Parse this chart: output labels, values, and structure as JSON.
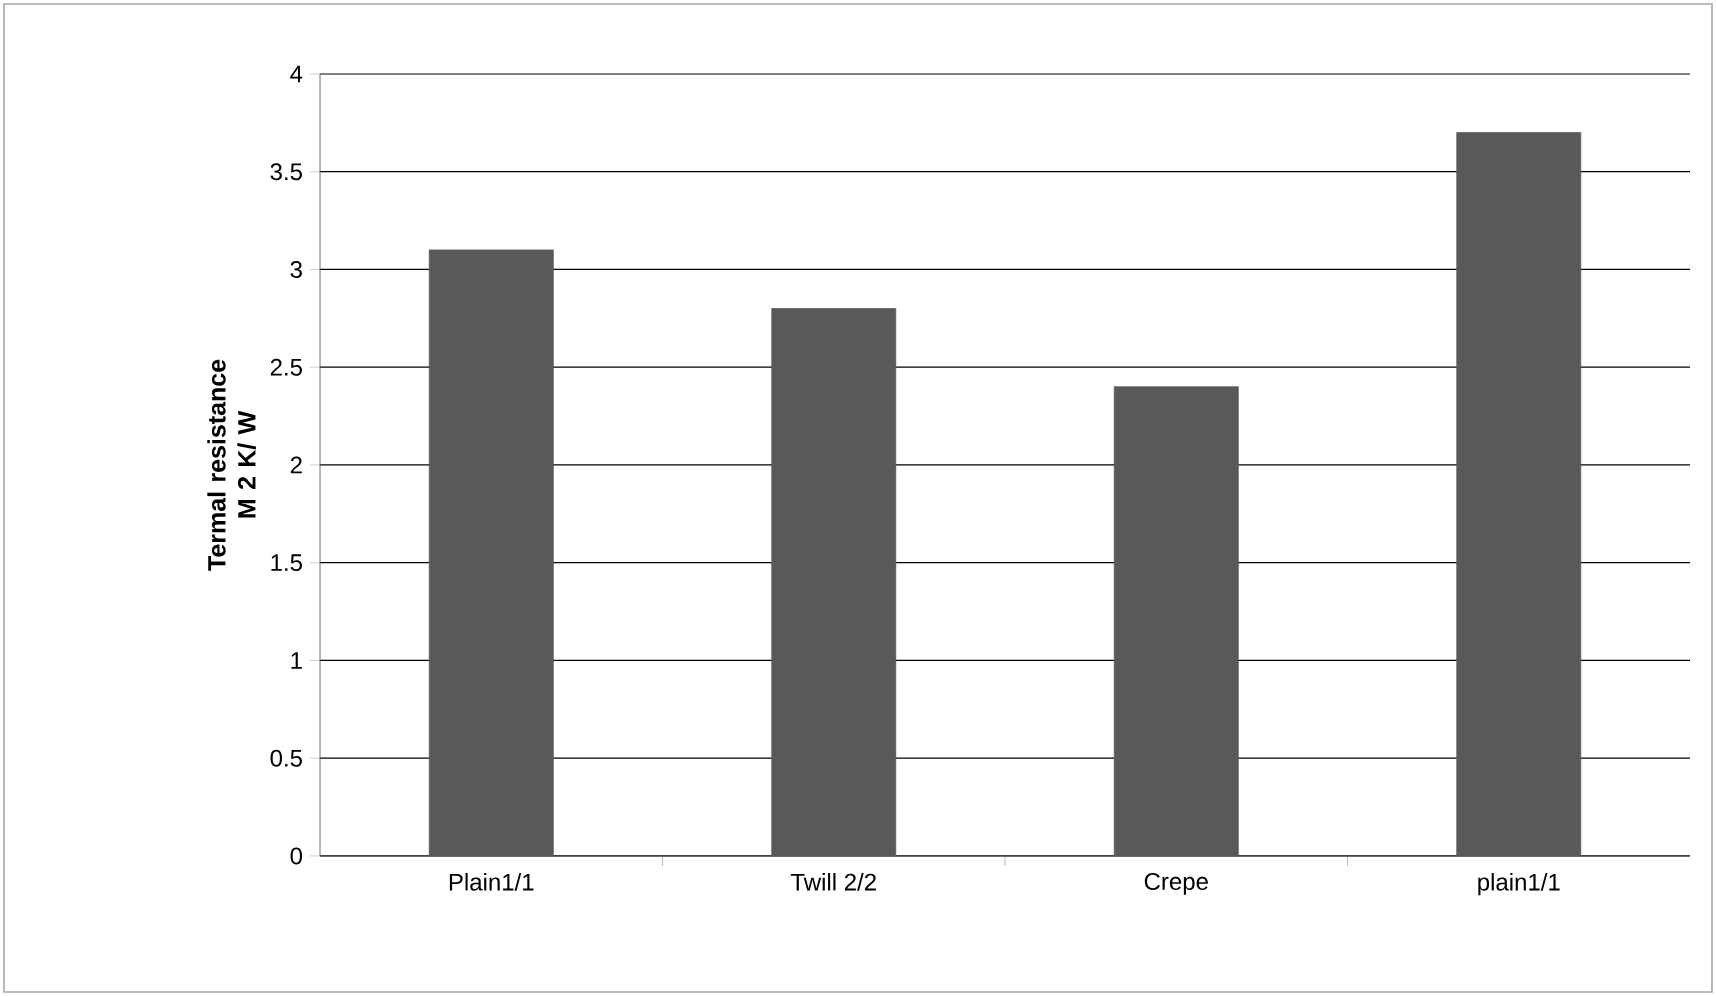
{
  "chart_data": {
    "type": "bar",
    "ylabel": "Termal resistance M 2 K/ W",
    "categories": [
      "Plain1/1",
      "Twill 2/2",
      "Crepe",
      "plain1/1"
    ],
    "values": [
      3.1,
      2.8,
      2.4,
      3.7
    ],
    "color": "#595959",
    "ylim": [
      0,
      4
    ],
    "yticks": [
      0,
      0.5,
      1,
      1.5,
      2,
      2.5,
      3,
      3.5,
      4
    ],
    "grid": "y"
  }
}
